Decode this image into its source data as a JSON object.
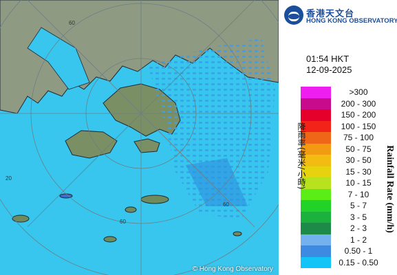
{
  "map": {
    "copyright": "© Hong Kong Observatory",
    "ring_labels": [
      "60",
      "20",
      "60",
      "60"
    ],
    "colors": {
      "sea": "#38c6ee",
      "land": "#8f9a83",
      "coast": "#1d2a34"
    }
  },
  "header": {
    "logo_zh": "香港天文台",
    "logo_en": "HONG KONG OBSERVATORY"
  },
  "time": "01:54 HKT",
  "date": "12-09-2025",
  "legend": {
    "label_zh": "降雨率(毫米/小時)",
    "label_en": "Rainfall Rate (mm/h)",
    "items": [
      {
        "range": ">300",
        "color": "#ee1ef0"
      },
      {
        "range": "200 - 300",
        "color": "#c80a8c"
      },
      {
        "range": "150 - 200",
        "color": "#e5002c"
      },
      {
        "range": "100 - 150",
        "color": "#f2241a"
      },
      {
        "range": "75 - 100",
        "color": "#f06618"
      },
      {
        "range": "50 - 75",
        "color": "#f29a12"
      },
      {
        "range": "30 - 50",
        "color": "#f2bc12"
      },
      {
        "range": "15 - 30",
        "color": "#e6d20e"
      },
      {
        "range": "10 - 15",
        "color": "#b9e21e"
      },
      {
        "range": "7 - 10",
        "color": "#5aee16"
      },
      {
        "range": "5 - 7",
        "color": "#22d228"
      },
      {
        "range": "3 - 5",
        "color": "#1cb03c"
      },
      {
        "range": "2 - 3",
        "color": "#1e8a48"
      },
      {
        "range": "1 - 2",
        "color": "#73b2ee"
      },
      {
        "range": "0.50 - 1",
        "color": "#3c8ae2"
      },
      {
        "range": "0.15 - 0.50",
        "color": "#12c4f8"
      }
    ]
  }
}
